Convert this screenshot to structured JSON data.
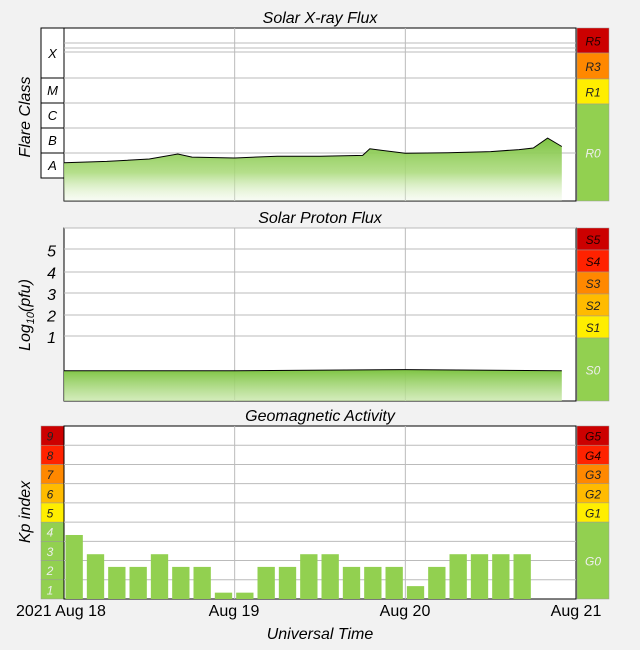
{
  "chart_data": [
    {
      "type": "area",
      "title": "Solar X-ray Flux",
      "ylabel": "Flare Class",
      "y_scale": "log",
      "ylim": [
        1e-09,
        0.01
      ],
      "flare_classes": [
        "X",
        "M",
        "C",
        "B",
        "A"
      ],
      "scale_labels": [
        {
          "label": "R5",
          "color": "#cc0000"
        },
        {
          "label": "R3",
          "color": "#ff8800"
        },
        {
          "label": "R1",
          "color": "#ffee00"
        },
        {
          "label": "R0",
          "color": "#92d050"
        }
      ],
      "x": [
        "2021-08-18T00:00",
        "2021-08-18T06:00",
        "2021-08-18T12:00",
        "2021-08-18T16:00",
        "2021-08-18T18:00",
        "2021-08-19T00:00",
        "2021-08-19T06:00",
        "2021-08-19T12:00",
        "2021-08-19T18:00",
        "2021-08-19T19:00",
        "2021-08-20T00:00",
        "2021-08-20T06:00",
        "2021-08-20T12:00",
        "2021-08-20T16:00",
        "2021-08-20T18:00",
        "2021-08-20T20:00",
        "2021-08-20T22:00"
      ],
      "values": [
        3.5e-08,
        4e-08,
        5e-08,
        8e-08,
        6e-08,
        5.5e-08,
        6.5e-08,
        6.5e-08,
        7e-08,
        1.3e-07,
        8.5e-08,
        9e-08,
        1e-07,
        1.2e-07,
        1.4e-07,
        3.5e-07,
        1.6e-07
      ],
      "series_color": "#92d050"
    },
    {
      "type": "area",
      "title": "Solar Proton Flux",
      "ylabel": "Log10(pfu)",
      "ylim": [
        -2,
        6
      ],
      "yticks": [
        1,
        2,
        3,
        4,
        5
      ],
      "scale_labels": [
        {
          "label": "S5",
          "color": "#cc0000"
        },
        {
          "label": "S4",
          "color": "#ff2200"
        },
        {
          "label": "S3",
          "color": "#ff8800"
        },
        {
          "label": "S2",
          "color": "#ffbb00"
        },
        {
          "label": "S1",
          "color": "#ffee00"
        },
        {
          "label": "S0",
          "color": "#92d050"
        }
      ],
      "x": [
        "2021-08-18T00:00",
        "2021-08-19T00:00",
        "2021-08-20T00:00",
        "2021-08-20T22:00"
      ],
      "values": [
        -0.6,
        -0.6,
        -0.55,
        -0.6
      ],
      "series_color": "#92d050"
    },
    {
      "type": "bar",
      "title": "Geomagnetic Activity",
      "ylabel": "Kp index",
      "xlabel": "Universal Time",
      "ylim": [
        0,
        9
      ],
      "kp_levels": [
        {
          "label": "1",
          "color": "#92d050"
        },
        {
          "label": "2",
          "color": "#92d050"
        },
        {
          "label": "3",
          "color": "#92d050"
        },
        {
          "label": "4",
          "color": "#92d050"
        },
        {
          "label": "5",
          "color": "#ffee00"
        },
        {
          "label": "6",
          "color": "#ffbb00"
        },
        {
          "label": "7",
          "color": "#ff8800"
        },
        {
          "label": "8",
          "color": "#ff2200"
        },
        {
          "label": "9",
          "color": "#cc0000"
        }
      ],
      "scale_labels": [
        {
          "label": "G5",
          "color": "#cc0000"
        },
        {
          "label": "G4",
          "color": "#ff2200"
        },
        {
          "label": "G3",
          "color": "#ff8800"
        },
        {
          "label": "G2",
          "color": "#ffbb00"
        },
        {
          "label": "G1",
          "color": "#ffee00"
        },
        {
          "label": "G0",
          "color": "#92d050"
        }
      ],
      "categories": [
        "2021-08-18T00:00",
        "2021-08-18T03:00",
        "2021-08-18T06:00",
        "2021-08-18T09:00",
        "2021-08-18T12:00",
        "2021-08-18T15:00",
        "2021-08-18T18:00",
        "2021-08-18T21:00",
        "2021-08-19T00:00",
        "2021-08-19T03:00",
        "2021-08-19T06:00",
        "2021-08-19T09:00",
        "2021-08-19T12:00",
        "2021-08-19T15:00",
        "2021-08-19T18:00",
        "2021-08-19T21:00",
        "2021-08-20T00:00",
        "2021-08-20T03:00",
        "2021-08-20T06:00",
        "2021-08-20T09:00",
        "2021-08-20T12:00",
        "2021-08-20T15:00",
        "2021-08-20T18:00",
        "2021-08-20T21:00"
      ],
      "values": [
        3.33,
        2.33,
        1.67,
        1.67,
        2.33,
        1.67,
        1.67,
        0.33,
        0.33,
        1.67,
        1.67,
        2.33,
        2.33,
        1.67,
        1.67,
        1.67,
        0.67,
        1.67,
        2.33,
        2.33,
        2.33,
        2.33,
        0,
        0
      ],
      "bar_color": "#92d050"
    }
  ],
  "time_axis": {
    "tick_labels": [
      "2021 Aug 18",
      "Aug 19",
      "Aug 20",
      "Aug 21"
    ],
    "xlim": [
      "2021-08-18T00:00",
      "2021-08-21T00:00"
    ]
  }
}
